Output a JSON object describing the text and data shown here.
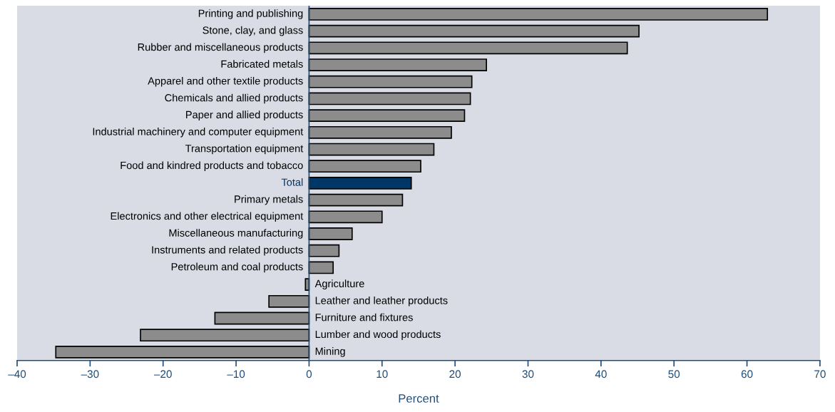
{
  "chart_data": {
    "type": "bar",
    "orientation": "horizontal",
    "xlabel": "Percent",
    "categories": [
      "Printing and publishing",
      "Stone, clay, and glass",
      "Rubber and miscellaneous products",
      "Fabricated metals",
      "Apparel and other textile products",
      "Chemicals and allied products",
      "Paper and allied products",
      "Industrial machinery and computer equipment",
      "Transportation equipment",
      "Food and kindred products and tobacco",
      "Total",
      "Primary metals",
      "Electronics and other electrical equipment",
      "Miscellaneous manufacturing",
      "Instruments and related products",
      "Petroleum and coal products",
      "Agriculture",
      "Leather and leather products",
      "Furniture and fixtures",
      "Lumber and wood products",
      "Mining"
    ],
    "values": [
      62.8,
      45.2,
      43.6,
      24.3,
      22.3,
      22.1,
      21.3,
      19.5,
      17.1,
      15.3,
      14.0,
      12.8,
      10.0,
      5.9,
      4.1,
      3.3,
      -0.5,
      -5.5,
      -12.9,
      -23.1,
      -34.7
    ],
    "colors": [
      "#8c8c8c",
      "#8c8c8c",
      "#8c8c8c",
      "#8c8c8c",
      "#8c8c8c",
      "#8c8c8c",
      "#8c8c8c",
      "#8c8c8c",
      "#8c8c8c",
      "#8c8c8c",
      "#003767",
      "#8c8c8c",
      "#8c8c8c",
      "#8c8c8c",
      "#8c8c8c",
      "#8c8c8c",
      "#8c8c8c",
      "#8c8c8c",
      "#8c8c8c",
      "#8c8c8c",
      "#8c8c8c"
    ],
    "xlim": [
      -40,
      70
    ],
    "xticks": [
      {
        "value": -40,
        "label": "–40"
      },
      {
        "value": -30,
        "label": "–30"
      },
      {
        "value": -20,
        "label": "–20"
      },
      {
        "value": -10,
        "label": "–10"
      },
      0,
      10,
      20,
      30,
      40,
      50,
      60,
      70
    ],
    "grid": false,
    "legend": false
  }
}
